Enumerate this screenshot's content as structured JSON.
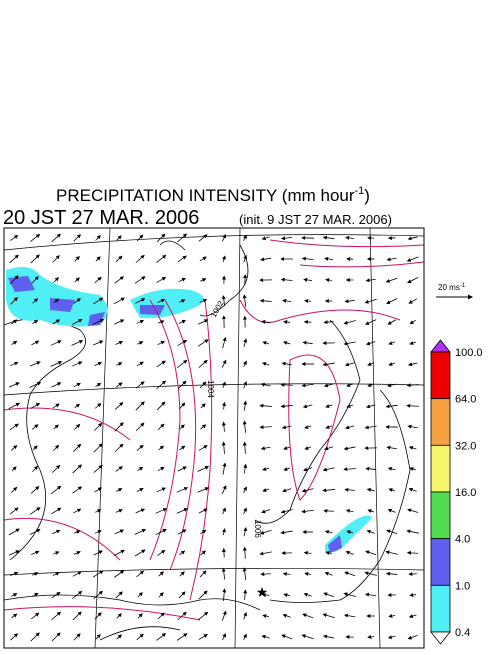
{
  "header": {
    "title": "PRECIPITATION INTENSITY (mm hour",
    "title_sup": "-1",
    "title_end": ")",
    "time": "20 JST 27 MAR. 2006",
    "init": "(init. 9 JST 27 MAR. 2006)"
  },
  "wind_legend": {
    "label": "20 ms",
    "label_sup": "-1"
  },
  "contour_labels": [
    "1002",
    "1004",
    "1006"
  ],
  "colorbar": {
    "labels": [
      "100.0",
      "64.0",
      "32.0",
      "16.0",
      "4.0",
      "1.0",
      "0.4"
    ],
    "colors": [
      "#ee0000",
      "#f5a040",
      "#f5f56a",
      "#50dd50",
      "#6060f0",
      "#50eef5"
    ],
    "over_color": "#b030f0",
    "under_color": "#ffffff"
  }
}
